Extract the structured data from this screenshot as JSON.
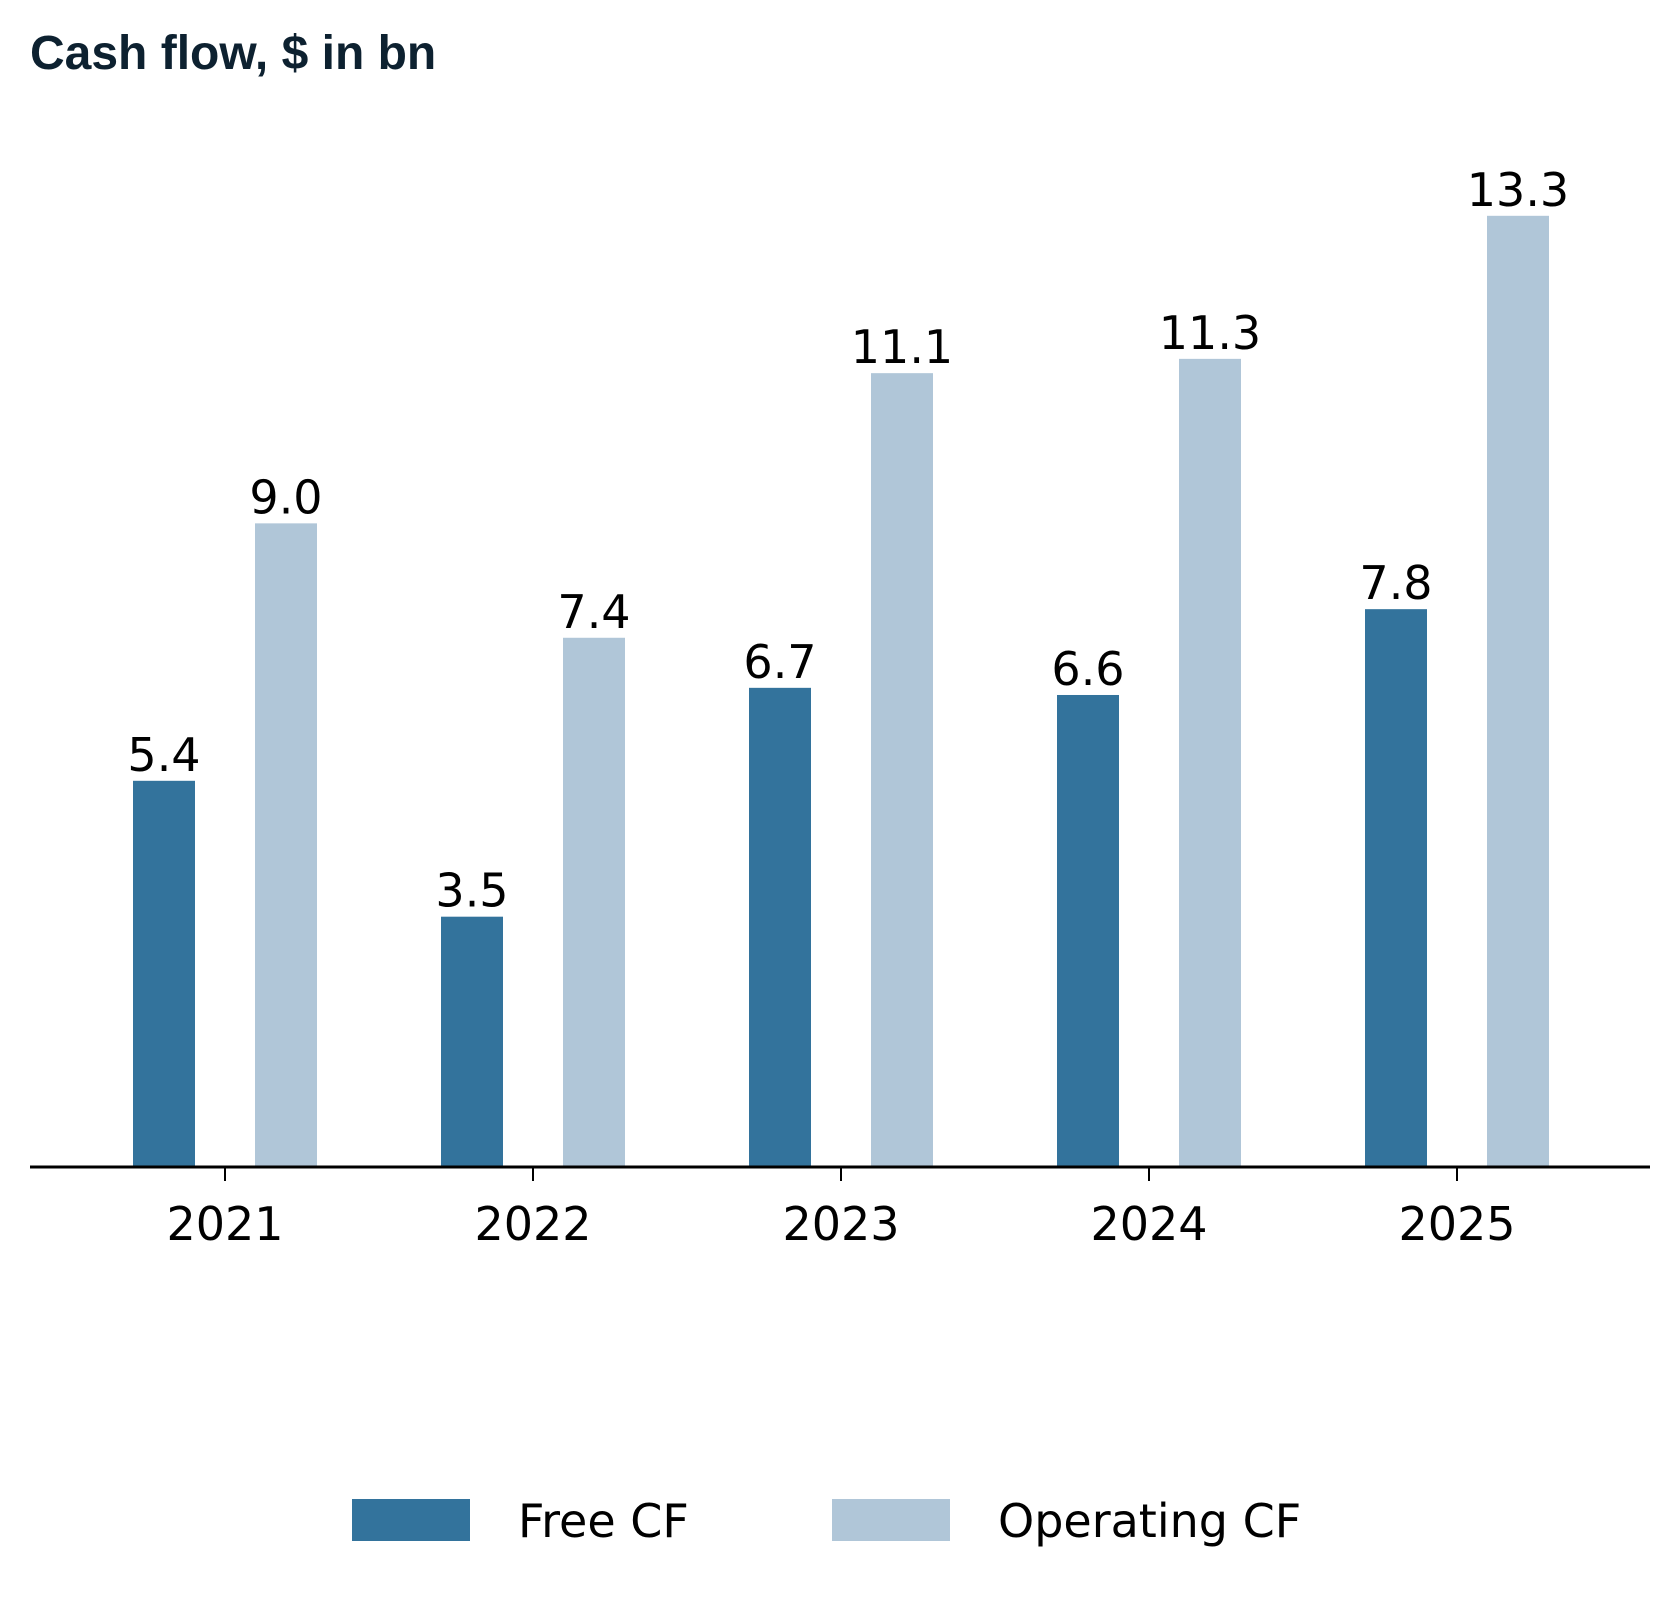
{
  "chart_data": {
    "type": "bar",
    "title": "Cash flow, $ in bn",
    "categories": [
      "2021",
      "2022",
      "2023",
      "2024",
      "2025"
    ],
    "series": [
      {
        "name": "Free CF",
        "color": "#33739c",
        "values": [
          5.4,
          3.5,
          6.7,
          6.6,
          7.8
        ],
        "labels": [
          "5.4",
          "3.5",
          "6.7",
          "6.6",
          "7.8"
        ]
      },
      {
        "name": "Operating CF",
        "color": "#b0c6d8",
        "values": [
          9.0,
          7.4,
          11.1,
          11.3,
          13.3
        ],
        "labels": [
          "9.0",
          "7.4",
          "11.1",
          "11.3",
          "13.3"
        ]
      }
    ],
    "ylim": [
      0,
      14.5
    ],
    "xlabel": "",
    "ylabel": "",
    "legend_position": "bottom-center",
    "grid": false
  }
}
